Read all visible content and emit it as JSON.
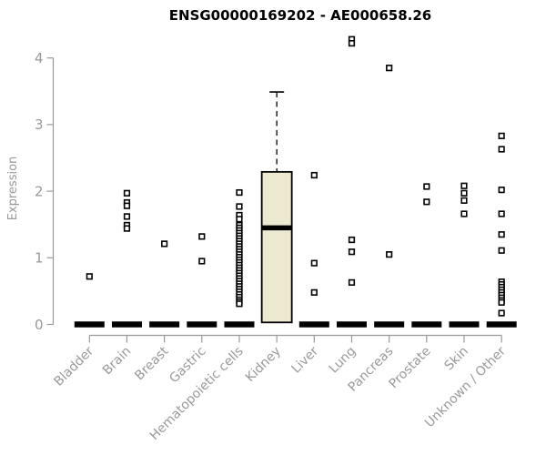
{
  "title": "ENSG00000169202 - AE000658.26",
  "colors": {
    "background": "#ffffff",
    "title": "#000000",
    "axis": "#999999",
    "tick_label": "#999999",
    "box_fill": "#ede8d0",
    "box_stroke": "#000000",
    "marker_stroke": "#000000",
    "marker_fill": "#ffffff"
  },
  "chart_data": {
    "type": "boxplot",
    "title": "ENSG00000169202 - AE000658.26",
    "xlabel": "",
    "ylabel": "Expression",
    "ylim": [
      0,
      4.35
    ],
    "yticks": [
      0,
      1,
      2,
      3,
      4
    ],
    "grid": false,
    "legend": "none",
    "categories": [
      "Bladder",
      "Brain",
      "Breast",
      "Gastric",
      "Hematopoietic cells",
      "Kidney",
      "Liver",
      "Lung",
      "Pancreas",
      "Prostate",
      "Skin",
      "Unknown / Other"
    ],
    "series": [
      {
        "category": "Bladder",
        "box": {
          "q1": 0,
          "median": 0,
          "q3": 0,
          "whisker_low": 0,
          "whisker_high": 0
        },
        "points": [
          0.72
        ]
      },
      {
        "category": "Brain",
        "box": {
          "q1": 0,
          "median": 0,
          "q3": 0,
          "whisker_low": 0,
          "whisker_high": 0
        },
        "points": [
          1.97,
          1.83,
          1.78,
          1.62,
          1.49,
          1.44
        ]
      },
      {
        "category": "Breast",
        "box": {
          "q1": 0,
          "median": 0,
          "q3": 0,
          "whisker_low": 0,
          "whisker_high": 0
        },
        "points": [
          1.21
        ]
      },
      {
        "category": "Gastric",
        "box": {
          "q1": 0,
          "median": 0,
          "q3": 0,
          "whisker_low": 0,
          "whisker_high": 0
        },
        "points": [
          1.32,
          0.95
        ]
      },
      {
        "category": "Hematopoietic cells",
        "box": {
          "q1": 0,
          "median": 0,
          "q3": 0,
          "whisker_low": 0,
          "whisker_high": 0
        },
        "points": [
          1.98,
          1.77,
          1.64,
          1.58,
          1.49,
          1.45,
          1.41,
          1.37,
          1.33,
          1.29,
          1.25,
          1.21,
          1.17,
          1.13,
          1.09,
          1.05,
          1.01,
          0.97,
          0.93,
          0.89,
          0.85,
          0.81,
          0.77,
          0.73,
          0.69,
          0.65,
          0.61,
          0.57,
          0.53,
          0.49,
          0.45,
          0.41,
          0.37,
          0.34,
          0.31
        ]
      },
      {
        "category": "Kidney",
        "box": {
          "q1": 0.03,
          "median": 1.45,
          "q3": 2.29,
          "whisker_low": 0.03,
          "whisker_high": 3.49
        },
        "points": []
      },
      {
        "category": "Liver",
        "box": {
          "q1": 0,
          "median": 0,
          "q3": 0,
          "whisker_low": 0,
          "whisker_high": 0
        },
        "points": [
          2.24,
          0.92,
          0.48
        ]
      },
      {
        "category": "Lung",
        "box": {
          "q1": 0,
          "median": 0,
          "q3": 0,
          "whisker_low": 0,
          "whisker_high": 0
        },
        "points": [
          4.28,
          4.22,
          1.27,
          1.09,
          0.63
        ]
      },
      {
        "category": "Pancreas",
        "box": {
          "q1": 0,
          "median": 0,
          "q3": 0,
          "whisker_low": 0,
          "whisker_high": 0
        },
        "points": [
          3.85,
          1.05
        ]
      },
      {
        "category": "Prostate",
        "box": {
          "q1": 0,
          "median": 0,
          "q3": 0,
          "whisker_low": 0,
          "whisker_high": 0
        },
        "points": [
          2.07,
          1.84
        ]
      },
      {
        "category": "Skin",
        "box": {
          "q1": 0,
          "median": 0,
          "q3": 0,
          "whisker_low": 0,
          "whisker_high": 0
        },
        "points": [
          2.08,
          1.97,
          1.86,
          1.66
        ]
      },
      {
        "category": "Unknown / Other",
        "box": {
          "q1": 0,
          "median": 0,
          "q3": 0,
          "whisker_low": 0,
          "whisker_high": 0
        },
        "points": [
          2.83,
          2.63,
          2.02,
          1.66,
          1.35,
          1.11,
          0.64,
          0.6,
          0.56,
          0.52,
          0.48,
          0.44,
          0.4,
          0.36,
          0.33,
          0.17
        ]
      }
    ]
  }
}
